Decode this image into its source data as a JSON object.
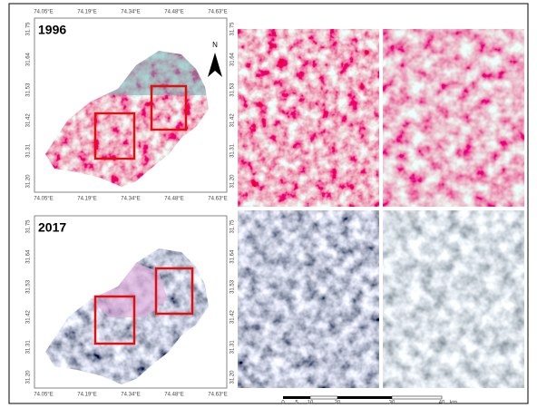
{
  "figure": {
    "panels": [
      {
        "year": "1996",
        "north": "N"
      },
      {
        "year": "2017"
      }
    ],
    "x_ticks": [
      "74.05°E",
      "74.19°E",
      "74.34°E",
      "74.48°E",
      "74.63°E"
    ],
    "y_ticks": [
      "31.75",
      "31.64",
      "31.53",
      "31.42",
      "31.31",
      "31.20"
    ],
    "scale_bar": [
      "0",
      "5",
      "10",
      "20",
      "30",
      "40",
      "km"
    ]
  }
}
